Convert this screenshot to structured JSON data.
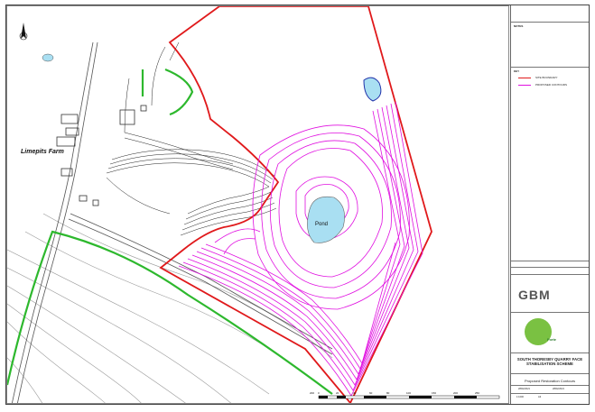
{
  "map": {
    "labels": {
      "farm": "Limepits Farm",
      "pond": "Pond"
    },
    "north_arrow_icon": "north-arrow-icon",
    "scale_bar": {
      "ticks": [
        "200",
        "0",
        "20",
        "40",
        "60",
        "80",
        "100",
        "150",
        "200",
        "250"
      ]
    },
    "colors": {
      "site_boundary": "#e0191b",
      "proposed_contours": "#e010e0",
      "green_boundary": "#2db82d",
      "water": "#a9dff2"
    }
  },
  "titleblock": {
    "notes_heading": "NOTES",
    "key_heading": "KEY",
    "legend": [
      {
        "label": "SITE BOUNDARY",
        "color": "#e0191b"
      },
      {
        "label": "PROPOSED CONTOURS",
        "color": "#e010e0"
      }
    ],
    "company_logo": "GBM",
    "client_logo_text": "Forte",
    "project": "SOUTH THORESBY QUARRY FACE STABILISATION SCHEME",
    "drawing_title": "Proposed Restoration Contours",
    "dates": [
      "28/02/2021",
      "28/02/2021"
    ],
    "scale": "1:1000",
    "sheet": "A3"
  }
}
